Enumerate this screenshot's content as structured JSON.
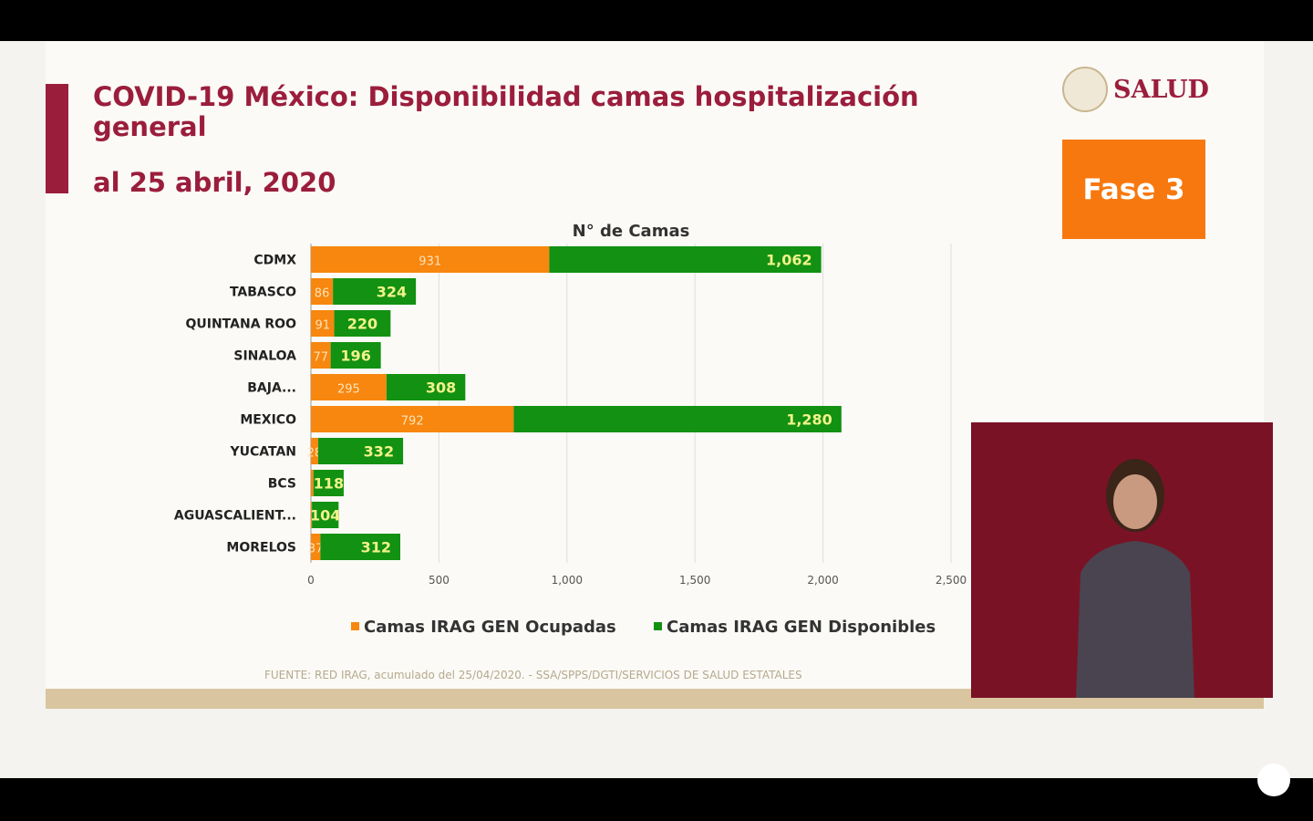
{
  "header": {
    "title": "COVID-19 México: Disponibilidad camas hospitalización general",
    "subtitle": "al 25 abril, 2020",
    "logo_text": "SALUD",
    "phase_badge": "Fase 3"
  },
  "source": "FUENTE: RED IRAG, acumulado del 25/04/2020. -  SSA/SPPS/DGTI/SERVICIOS DE SALUD ESTATALES",
  "colors": {
    "ocupadas": "#f7870f",
    "disponibles": "#129112",
    "brand": "#9b1d3c"
  },
  "chart_data": {
    "type": "bar",
    "orientation": "horizontal",
    "stacked": true,
    "title": "N° de Camas",
    "categories": [
      "CDMX",
      "TABASCO",
      "QUINTANA ROO",
      "SINALOA",
      "BAJA...",
      "MEXICO",
      "YUCATAN",
      "BCS",
      "AGUASCALIENT...",
      "MORELOS"
    ],
    "series": [
      {
        "name": "Camas IRAG GEN Ocupadas",
        "values": [
          931,
          86,
          91,
          77,
          295,
          792,
          28,
          10,
          4,
          37
        ],
        "labels": [
          "931",
          "86",
          "91",
          "77",
          "295",
          "792",
          "28",
          "",
          "",
          "37"
        ]
      },
      {
        "name": "Camas IRAG GEN Disponibles",
        "values": [
          1062,
          324,
          220,
          196,
          308,
          1280,
          332,
          118,
          104,
          312
        ],
        "labels": [
          "1,062",
          "324",
          "220",
          "196",
          "308",
          "1,280",
          "332",
          "118",
          "104",
          "312"
        ]
      }
    ],
    "xlim": [
      0,
      2500
    ],
    "xticks": [
      "0",
      "500",
      "1,000",
      "1,500",
      "2,000",
      "2,500"
    ],
    "grid": true,
    "legend": "bottom"
  }
}
